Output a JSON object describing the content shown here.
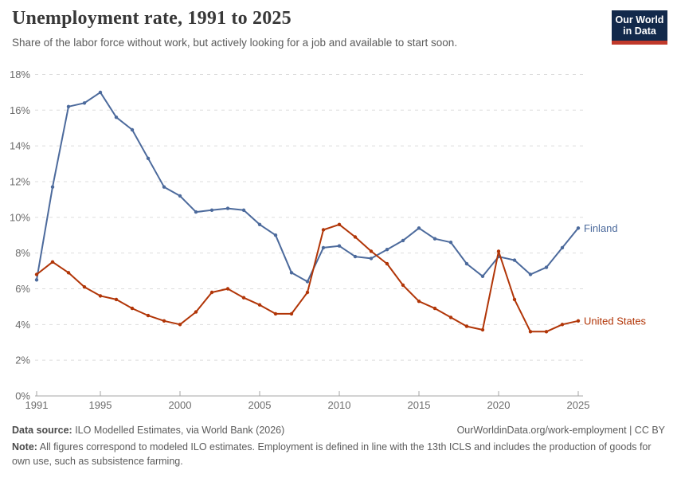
{
  "header": {
    "title": "Unemployment rate, 1991 to 2025",
    "subtitle": "Share of the labor force without work, but actively looking for a job and available to start soon.",
    "logo": {
      "line1": "Our World",
      "line2": "in Data",
      "bg_color": "#12294B",
      "accent_color": "#C0392B"
    }
  },
  "chart_data": {
    "type": "line",
    "title": "Unemployment rate, 1991 to 2025",
    "x": [
      1991,
      1992,
      1993,
      1994,
      1995,
      1996,
      1997,
      1998,
      1999,
      2000,
      2001,
      2002,
      2003,
      2004,
      2005,
      2006,
      2007,
      2008,
      2009,
      2010,
      2011,
      2012,
      2013,
      2014,
      2015,
      2016,
      2017,
      2018,
      2019,
      2020,
      2021,
      2022,
      2023,
      2024,
      2025
    ],
    "x_ticks": [
      1991,
      1995,
      2000,
      2005,
      2010,
      2015,
      2020,
      2025
    ],
    "ylim": [
      0,
      18
    ],
    "y_ticks": [
      0,
      2,
      4,
      6,
      8,
      10,
      12,
      14,
      16,
      18
    ],
    "y_tick_suffix": "%",
    "grid": "horizontal-dashed",
    "legend": "line-end-labels",
    "xlabel": "",
    "ylabel": "",
    "series": [
      {
        "name": "Finland",
        "color": "#4C6A9C",
        "values": [
          6.5,
          11.7,
          16.2,
          16.4,
          17.0,
          15.6,
          14.9,
          13.3,
          11.7,
          11.2,
          10.3,
          10.4,
          10.5,
          10.4,
          9.6,
          9.0,
          6.9,
          6.4,
          8.3,
          8.4,
          7.8,
          7.7,
          8.2,
          8.7,
          9.4,
          8.8,
          8.6,
          7.4,
          6.7,
          7.8,
          7.6,
          6.8,
          7.2,
          8.3,
          9.4
        ]
      },
      {
        "name": "United States",
        "color": "#B13507",
        "values": [
          6.8,
          7.5,
          6.9,
          6.1,
          5.6,
          5.4,
          4.9,
          4.5,
          4.2,
          4.0,
          4.7,
          5.8,
          6.0,
          5.5,
          5.1,
          4.6,
          4.6,
          5.8,
          9.3,
          9.6,
          8.9,
          8.1,
          7.4,
          6.2,
          5.3,
          4.9,
          4.4,
          3.9,
          3.7,
          8.1,
          5.4,
          3.6,
          3.6,
          4.0,
          4.2
        ]
      }
    ],
    "axis_color": "#a5a5a5",
    "grid_color": "#dddddd",
    "tick_label_color": "#6b6b6b"
  },
  "footer": {
    "datasource_label": "Data source:",
    "datasource_text": " ILO Modelled Estimates, via World Bank (2026)",
    "link_text": "OurWorldinData.org/work-employment | CC BY",
    "note_label": "Note:",
    "note_text": " All figures correspond to modeled ILO estimates. Employment is defined in line with the 13th ICLS and includes the production of goods for own use, such as subsistence farming."
  }
}
